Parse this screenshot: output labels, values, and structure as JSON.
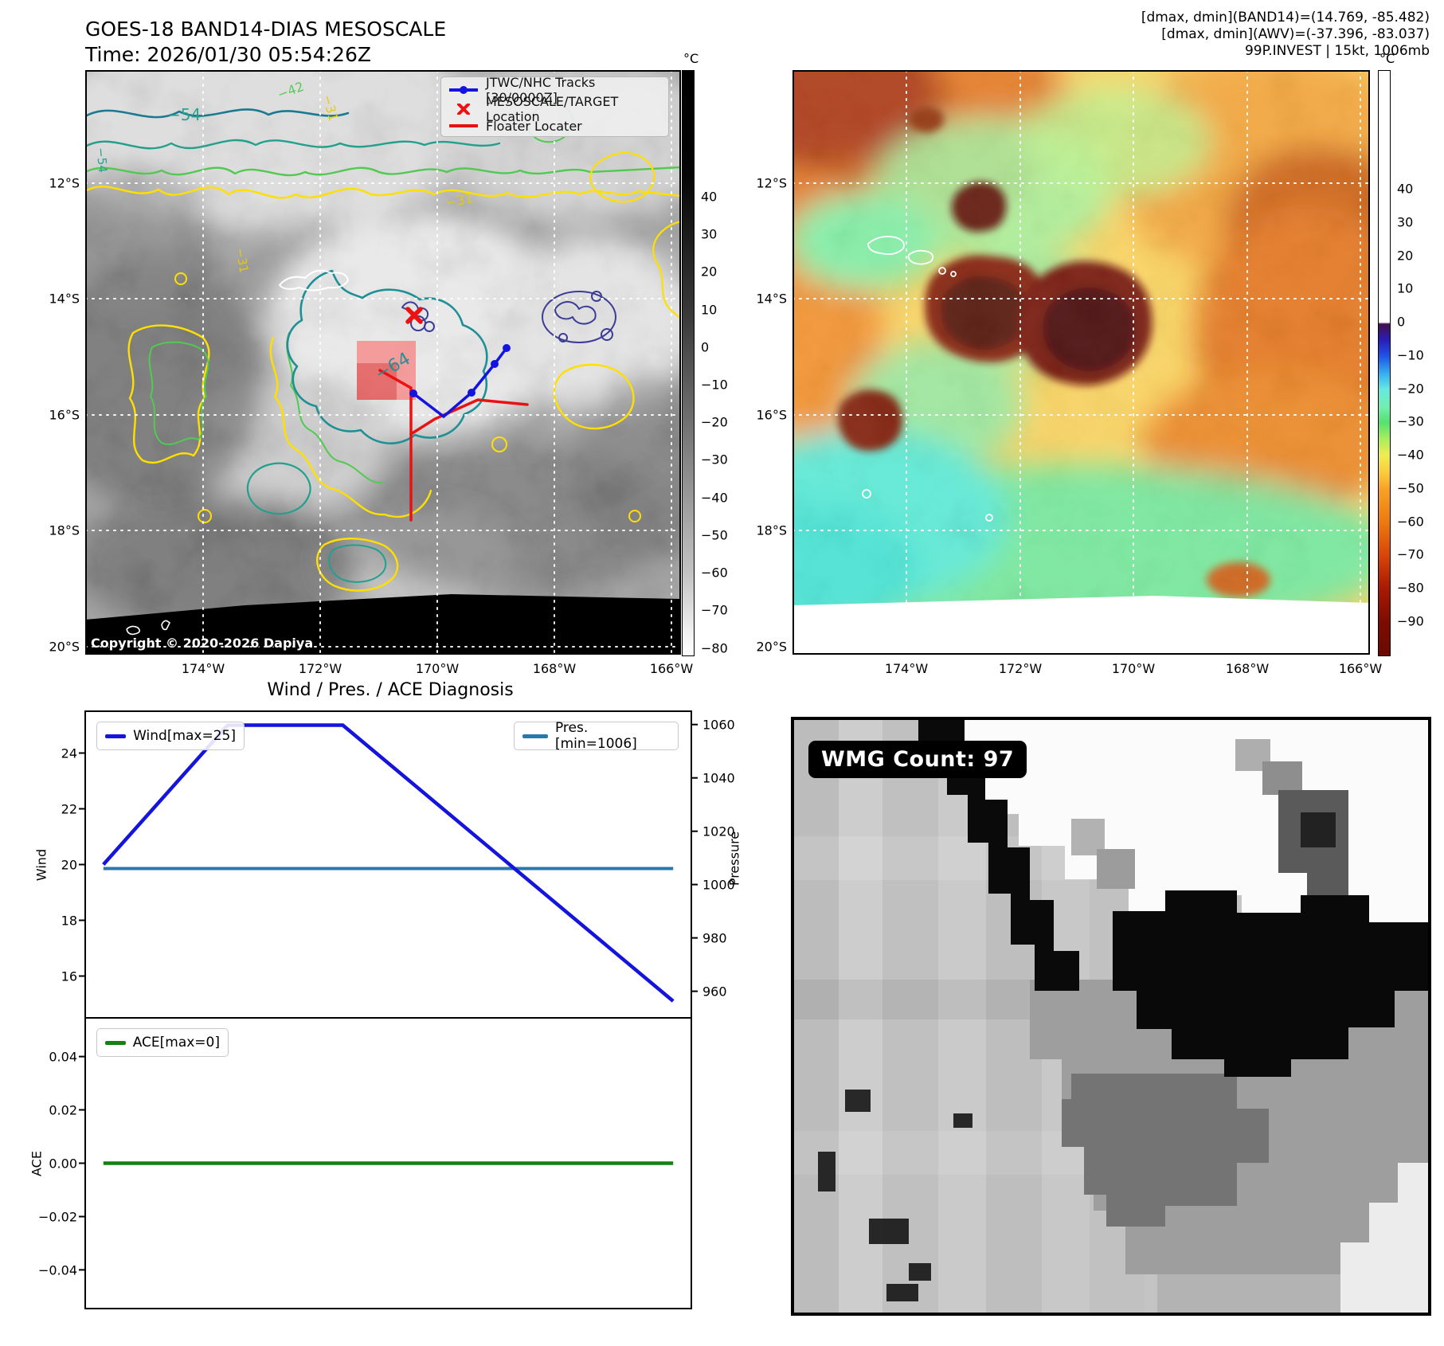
{
  "header": {
    "title_line1": "GOES-18 BAND14-DIAS MESOSCALE",
    "title_line2": "Time: 2026/01/30 05:54:26Z",
    "info_line1": "[dmax, dmin](BAND14)=(14.769, -85.482)",
    "info_line2": "[dmax, dmin](AWV)=(-37.396, -83.037)",
    "info_line3": "99P.INVEST | 15kt, 1006mb"
  },
  "band14_panel": {
    "legend": {
      "tracks": "JTWC/NHC Tracks [30/0000Z]",
      "target": "MESOSCALE/TARGET Location",
      "floater": "Floater Locater"
    },
    "copyright": "Copyright © 2020-2026 Dapiya",
    "lat_ticks": [
      "12°S",
      "14°S",
      "16°S",
      "18°S",
      "20°S"
    ],
    "lon_ticks": [
      "174°W",
      "172°W",
      "170°W",
      "168°W",
      "166°W"
    ],
    "contour_labels": {
      "c54": "−54",
      "c42": "−42",
      "c31": "−31",
      "c64": "−64"
    },
    "colorbar": {
      "unit": "°C",
      "ticks": [
        "40",
        "30",
        "20",
        "10",
        "0",
        "−10",
        "−20",
        "−30",
        "−40",
        "−50",
        "−60",
        "−70",
        "−80"
      ]
    }
  },
  "awv_panel": {
    "lat_ticks": [
      "12°S",
      "14°S",
      "16°S",
      "18°S",
      "20°S"
    ],
    "lon_ticks": [
      "174°W",
      "172°W",
      "170°W",
      "168°W",
      "166°W"
    ],
    "colorbar": {
      "unit": "°C",
      "ticks": [
        "40",
        "30",
        "20",
        "10",
        "0",
        "−10",
        "−20",
        "−30",
        "−40",
        "−50",
        "−60",
        "−70",
        "−80",
        "−90"
      ]
    }
  },
  "diagnosis_panel": {
    "title": "Wind / Pres. / ACE Diagnosis",
    "wind_legend": "Wind[max=25]",
    "pres_legend": "Pres.[min=1006]",
    "ace_legend": "ACE[max=0]",
    "wind_axis_label": "Wind",
    "pressure_axis_label": "Pressure",
    "ace_axis_label": "ACE",
    "wind_ticks": [
      "24",
      "22",
      "20",
      "18",
      "16"
    ],
    "pressure_ticks": [
      "1060",
      "1040",
      "1020",
      "1000",
      "980",
      "960"
    ],
    "ace_ticks": [
      "0.04",
      "0.02",
      "0.00",
      "−0.02",
      "−0.04"
    ]
  },
  "wmg_panel": {
    "count_label": "WMG Count: 97"
  },
  "chart_data": [
    {
      "type": "line",
      "title": "Wind / Pres. / ACE Diagnosis",
      "axes": {
        "left_label": "Wind",
        "right_label": "Pressure",
        "left_ticks": [
          24,
          22,
          20,
          18,
          16
        ],
        "right_ticks": [
          1060,
          1040,
          1020,
          1000,
          980,
          960
        ],
        "left_ylim": [
          14.5,
          25.5
        ],
        "right_ylim": [
          950,
          1065
        ],
        "grid": false,
        "legend_position": "upper-left / upper-right"
      },
      "series": [
        {
          "name": "Wind[max=25]",
          "color": "#1414dd",
          "axis": "left",
          "x_frac": [
            0.03,
            0.235,
            0.425,
            0.97
          ],
          "values": [
            20,
            25,
            25,
            15.1
          ]
        },
        {
          "name": "Pres.[min=1006]",
          "color": "#2878a8",
          "axis": "right",
          "x_frac": [
            0.03,
            0.97
          ],
          "values": [
            1006,
            1006
          ]
        }
      ]
    },
    {
      "type": "line",
      "axes": {
        "left_label": "ACE",
        "left_ticks": [
          0.04,
          0.02,
          0.0,
          -0.02,
          -0.04
        ],
        "left_ylim": [
          -0.0545,
          0.0545
        ],
        "grid": false,
        "legend_position": "upper-left"
      },
      "series": [
        {
          "name": "ACE[max=0]",
          "color": "#168016",
          "axis": "left",
          "x_frac": [
            0.03,
            0.97
          ],
          "values": [
            0,
            0
          ]
        }
      ]
    }
  ],
  "colors": {
    "contour_yellow": "#ffdf00",
    "contour_green": "#52c952",
    "contour_teal": "#23a08c",
    "contour_navy": "#3c3c96",
    "track_blue": "#1414e0",
    "marker_red": "#ee1111",
    "wind_line": "#1414dd",
    "pressure_line": "#2878a8",
    "ace_line": "#168016"
  }
}
